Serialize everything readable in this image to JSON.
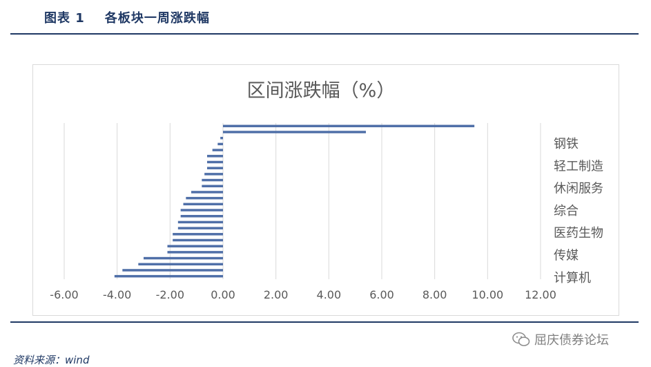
{
  "figure": {
    "label": "图表 1",
    "title": "各板块一周涨跌幅"
  },
  "source": "资料来源：wind",
  "watermark": "屈庆债券论坛",
  "colors": {
    "bar": "#4F6FA8",
    "grid": "#d9d9d9",
    "text": "#595959",
    "accent": "#1F3864"
  },
  "chart_data": {
    "type": "bar",
    "orientation": "horizontal",
    "title": "区间涨跌幅（%）",
    "xlim": [
      -6,
      12
    ],
    "xticks": [
      -6,
      -4,
      -2,
      0,
      2,
      4,
      6,
      8,
      10,
      12
    ],
    "xtick_labels": [
      "-6.00",
      "-4.00",
      "-2.00",
      "0.00",
      "2.00",
      "4.00",
      "6.00",
      "8.00",
      "10.00",
      "12.00"
    ],
    "grid": "vertical",
    "category_labels": [
      "钢铁",
      "轻工制造",
      "休闲服务",
      "综合",
      "医药生物",
      "传媒",
      "计算机"
    ],
    "values": [
      9.5,
      5.4,
      -0.1,
      -0.2,
      -0.4,
      -0.6,
      -0.6,
      -0.6,
      -0.7,
      -0.8,
      -0.8,
      -1.2,
      -1.4,
      -1.5,
      -1.6,
      -1.6,
      -1.7,
      -1.7,
      -1.9,
      -1.9,
      -2.1,
      -2.1,
      -3.0,
      -3.2,
      -3.8,
      -4.1
    ]
  }
}
